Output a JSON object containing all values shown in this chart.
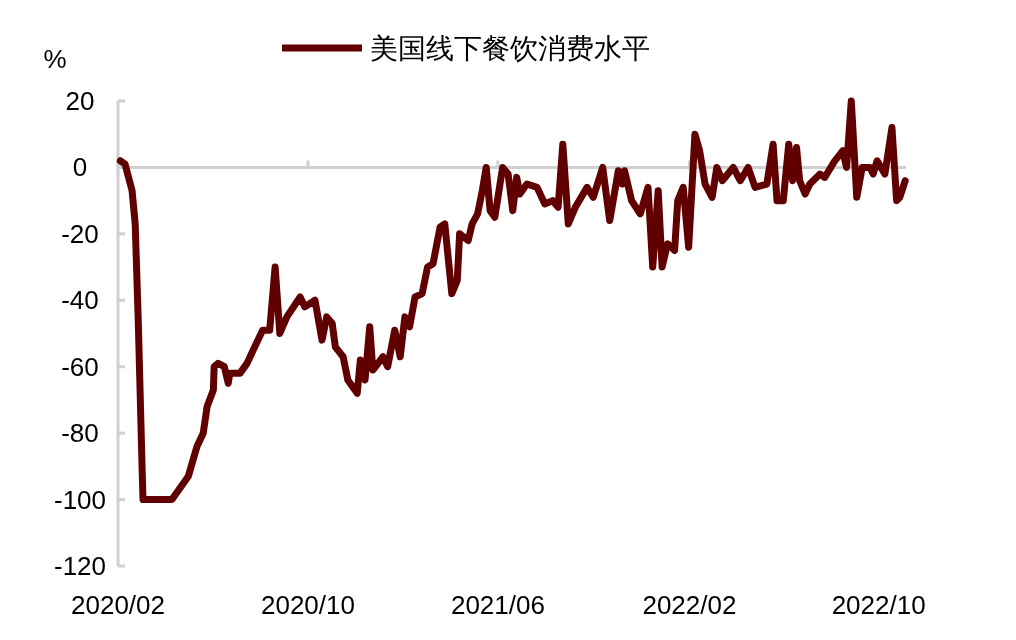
{
  "chart_data": {
    "type": "line",
    "ylabel": "%",
    "legend": "top",
    "line_style": "solid",
    "marker": "none",
    "xlim": [
      "2020-02-01",
      "2022-11-05"
    ],
    "xticks": [
      {
        "value": "2020-02-01",
        "label": "2020/02"
      },
      {
        "value": "2020-10-01",
        "label": "2020/10"
      },
      {
        "value": "2021-06-01",
        "label": "2021/06"
      },
      {
        "value": "2022-02-01",
        "label": "2022/02"
      },
      {
        "value": "2022-10-01",
        "label": "2022/10"
      }
    ],
    "ylim": [
      -120,
      20
    ],
    "yticks": [
      -120,
      -100,
      -80,
      -60,
      -40,
      -20,
      0,
      20
    ],
    "series": [
      {
        "name": "美国线下餐饮消费水平",
        "color": "#600000",
        "x": [
          "2020-02-04",
          "2020-02-10",
          "2020-02-19",
          "2020-02-23",
          "2020-02-27",
          "2020-03-03",
          "2020-03-04",
          "2020-04-10",
          "2020-05-01",
          "2020-05-12",
          "2020-05-20",
          "2020-05-25",
          "2020-06-02",
          "2020-06-03",
          "2020-06-08",
          "2020-06-16",
          "2020-06-21",
          "2020-06-23",
          "2020-07-06",
          "2020-07-15",
          "2020-07-23",
          "2020-08-04",
          "2020-08-13",
          "2020-08-20",
          "2020-08-26",
          "2020-09-04",
          "2020-09-21",
          "2020-09-27",
          "2020-10-10",
          "2020-10-19",
          "2020-10-25",
          "2020-11-01",
          "2020-11-05",
          "2020-11-15",
          "2020-11-21",
          "2020-12-03",
          "2020-12-07",
          "2020-12-13",
          "2020-12-19",
          "2020-12-23",
          "2021-01-05",
          "2021-01-11",
          "2021-01-20",
          "2021-01-27",
          "2021-02-02",
          "2021-02-08",
          "2021-02-15",
          "2021-02-24",
          "2021-03-03",
          "2021-03-10",
          "2021-03-19",
          "2021-03-25",
          "2021-04-03",
          "2021-04-10",
          "2021-04-13",
          "2021-04-24",
          "2021-04-29",
          "2021-05-06",
          "2021-05-12",
          "2021-05-17",
          "2021-05-22",
          "2021-05-28",
          "2021-06-07",
          "2021-06-14",
          "2021-06-20",
          "2021-06-25",
          "2021-06-29",
          "2021-07-08",
          "2021-07-21",
          "2021-07-31",
          "2021-08-10",
          "2021-08-17",
          "2021-08-23",
          "2021-08-30",
          "2021-09-08",
          "2021-09-23",
          "2021-10-01",
          "2021-10-13",
          "2021-10-22",
          "2021-11-02",
          "2021-11-07",
          "2021-11-10",
          "2021-11-19",
          "2021-11-30",
          "2021-12-10",
          "2021-12-16",
          "2021-12-23",
          "2021-12-28",
          "2022-01-04",
          "2022-01-13",
          "2022-01-17",
          "2022-01-24",
          "2022-01-31",
          "2022-02-08",
          "2022-02-14",
          "2022-02-21",
          "2022-03-02",
          "2022-03-08",
          "2022-03-15",
          "2022-03-29",
          "2022-04-07",
          "2022-04-17",
          "2022-04-26",
          "2022-05-11",
          "2022-05-19",
          "2022-05-24",
          "2022-06-01",
          "2022-06-08",
          "2022-06-13",
          "2022-06-18",
          "2022-06-22",
          "2022-06-29",
          "2022-07-05",
          "2022-07-18",
          "2022-07-24",
          "2022-08-06",
          "2022-08-16",
          "2022-08-21",
          "2022-08-27",
          "2022-09-03",
          "2022-09-10",
          "2022-09-20",
          "2022-09-24",
          "2022-09-29",
          "2022-10-09",
          "2022-10-18",
          "2022-10-24",
          "2022-10-28",
          "2022-11-04"
        ],
        "values": [
          2,
          1,
          -7,
          -17,
          -47,
          -92,
          -100,
          -100,
          -93,
          -84,
          -80,
          -72,
          -67,
          -60,
          -59,
          -60,
          -65,
          -62,
          -62,
          -59,
          -55,
          -49,
          -49,
          -30,
          -50,
          -45,
          -39,
          -42,
          -40,
          -52,
          -45,
          -47,
          -54,
          -57,
          -64,
          -68,
          -58,
          -64,
          -48,
          -61,
          -57,
          -60,
          -49,
          -57,
          -45,
          -48,
          -39,
          -38,
          -30,
          -29,
          -18,
          -17,
          -38,
          -34,
          -20,
          -22,
          -17,
          -14,
          -7,
          0,
          -13,
          -15,
          0,
          -2,
          -13,
          -3,
          -8,
          -5,
          -6,
          -11,
          -10,
          -12,
          7,
          -17,
          -12,
          -6,
          -9,
          0,
          -16,
          -1,
          -5,
          -1,
          -10,
          -14,
          -6,
          -30,
          -7,
          -30,
          -23,
          -25,
          -10,
          -6,
          -24,
          10,
          5,
          -5,
          -9,
          0,
          -4,
          0,
          -4,
          0,
          -6,
          -5,
          7,
          -10,
          -10,
          7,
          -4,
          6,
          -4,
          -8,
          -5,
          -2,
          -3,
          2,
          5,
          0,
          20,
          -9,
          0,
          0,
          -2,
          2,
          -2,
          12,
          -10,
          -9,
          -4
        ]
      }
    ]
  }
}
